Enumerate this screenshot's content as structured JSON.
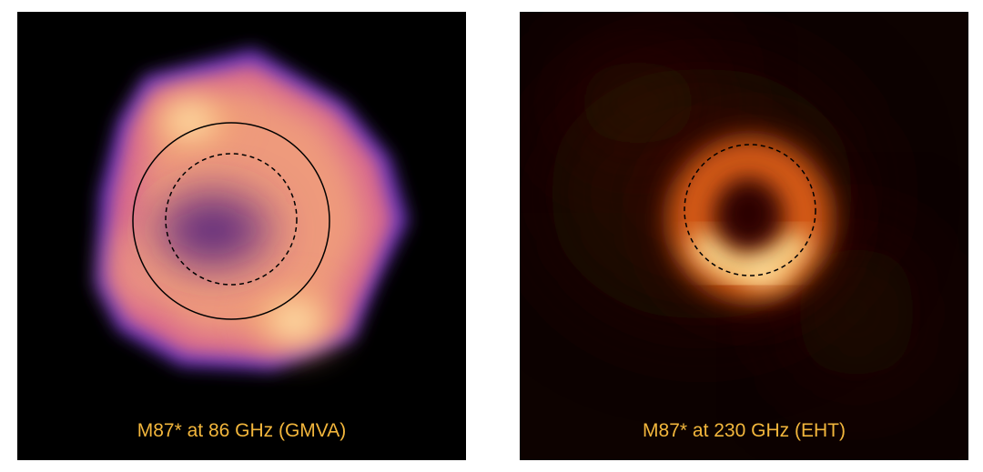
{
  "panels": [
    {
      "caption": "M87* at 86 GHz (GMVA)"
    },
    {
      "caption": "M87* at 230 GHz (EHT)"
    }
  ],
  "colors": {
    "caption": "#f2b63c",
    "background": "#000000",
    "background_right": "#0d0200"
  }
}
